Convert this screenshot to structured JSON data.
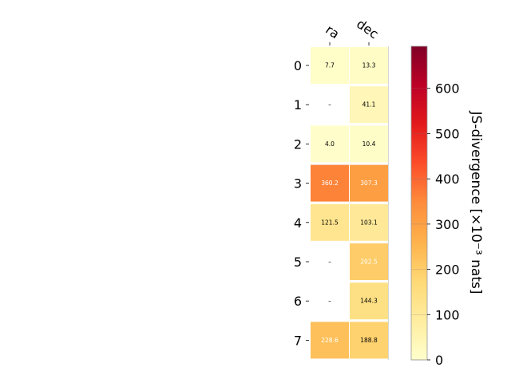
{
  "chart_data": {
    "type": "heatmap",
    "columns": [
      "ra",
      "dec"
    ],
    "rows": [
      "0",
      "1",
      "2",
      "3",
      "4",
      "5",
      "6",
      "7"
    ],
    "cells": [
      [
        "7.7",
        "13.3"
      ],
      [
        "–",
        "41.1"
      ],
      [
        "4.0",
        "10.4"
      ],
      [
        "360.2",
        "307.3"
      ],
      [
        "121.5",
        "103.1"
      ],
      [
        "–",
        "202.5"
      ],
      [
        "–",
        "144.3"
      ],
      [
        "228.6",
        "188.8"
      ]
    ],
    "values": [
      [
        7.7,
        13.3
      ],
      [
        null,
        41.1
      ],
      [
        4.0,
        10.4
      ],
      [
        360.2,
        307.3
      ],
      [
        121.5,
        103.1
      ],
      [
        null,
        202.5
      ],
      [
        null,
        144.3
      ],
      [
        228.6,
        188.8
      ]
    ],
    "colorbar": {
      "label": "JS-divergence [×10⁻³ nats]",
      "ticks": [
        "0",
        "100",
        "200",
        "300",
        "400",
        "500",
        "600"
      ],
      "tick_values": [
        0,
        100,
        200,
        300,
        400,
        500,
        600
      ],
      "range": [
        0,
        693
      ],
      "colormap": "YlOrRd"
    },
    "missing_color": "#ffffff",
    "grid": false
  }
}
